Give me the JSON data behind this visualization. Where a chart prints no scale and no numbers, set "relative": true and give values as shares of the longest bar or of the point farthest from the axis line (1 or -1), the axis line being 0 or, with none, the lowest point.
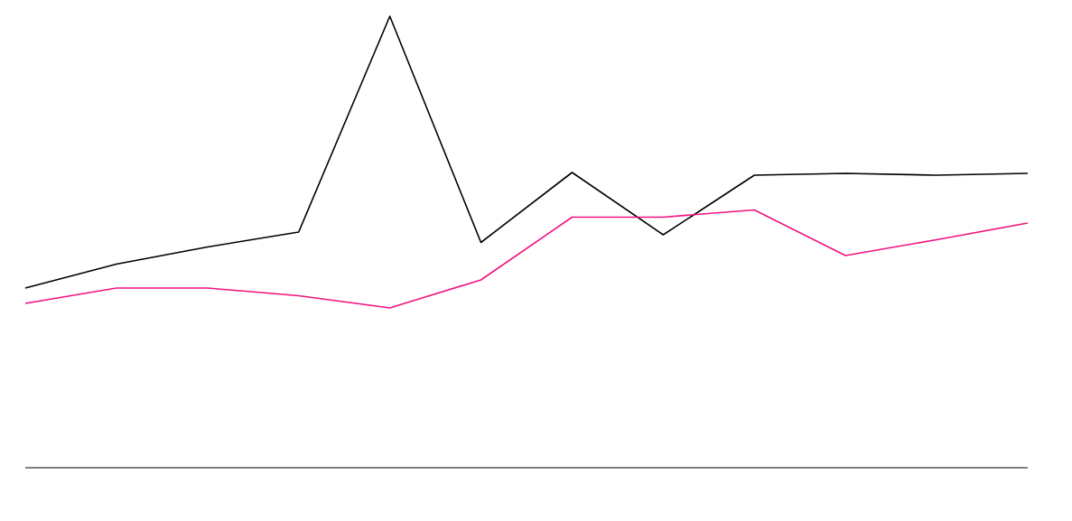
{
  "chart_data": {
    "type": "line",
    "relative": true,
    "categories": [
      null,
      null,
      null,
      null,
      null,
      null,
      null,
      null,
      null,
      null,
      null,
      null
    ],
    "series": [
      {
        "color": "#000000",
        "values": [
          0.398,
          0.451,
          0.489,
          0.522,
          1,
          0.499,
          0.654,
          0.516,
          0.648,
          0.652,
          0.648,
          0.652
        ]
      },
      {
        "color": "#f0127f",
        "values": [
          0.364,
          0.398,
          0.398,
          0.381,
          0.354,
          0.416,
          0.555,
          0.555,
          0.571,
          0.47,
          0.505,
          0.542
        ]
      }
    ]
  }
}
